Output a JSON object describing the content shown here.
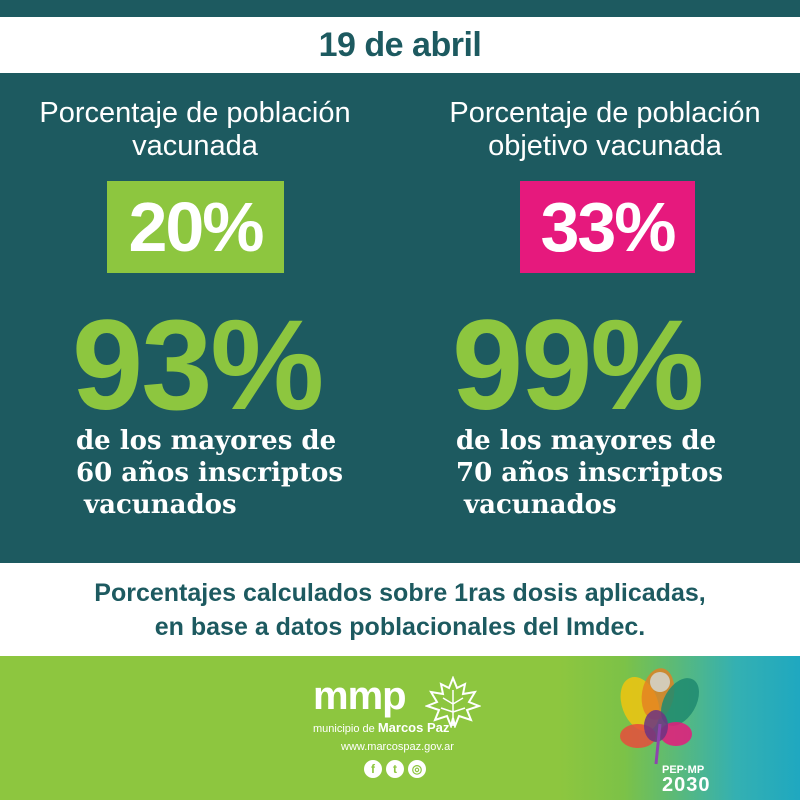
{
  "header": {
    "date": "19 de abril"
  },
  "left": {
    "title_line1": "Porcentaje de población",
    "title_line2": "vacunada",
    "pct": "20%",
    "big_pct": "93%",
    "desc_line1": "de los mayores de",
    "desc_line2": "60 años inscriptos",
    "desc_line3": "vacunados"
  },
  "right": {
    "title_line1": "Porcentaje de población",
    "title_line2": "objetivo vacunada",
    "pct": "33%",
    "big_pct": "99%",
    "desc_line1": "de los mayores de",
    "desc_line2": "70 años inscriptos",
    "desc_line3": "vacunados"
  },
  "note": {
    "line1": "Porcentajes calculados sobre 1ras dosis aplicadas,",
    "line2": "en base a datos poblacionales del Imdec."
  },
  "footer": {
    "logo_text": "mmp",
    "municipio_prefix": "municipio de",
    "municipio_name": "Marcos Paz",
    "url": "www.marcospaz.gov.ar",
    "social": {
      "facebook": "f",
      "twitter": "t",
      "instagram": "◎"
    },
    "pep_label": "PEP·MP",
    "pep_year": "2030"
  },
  "colors": {
    "teal": "#1d5a60",
    "green": "#8dc63f",
    "pink": "#e6197d"
  }
}
